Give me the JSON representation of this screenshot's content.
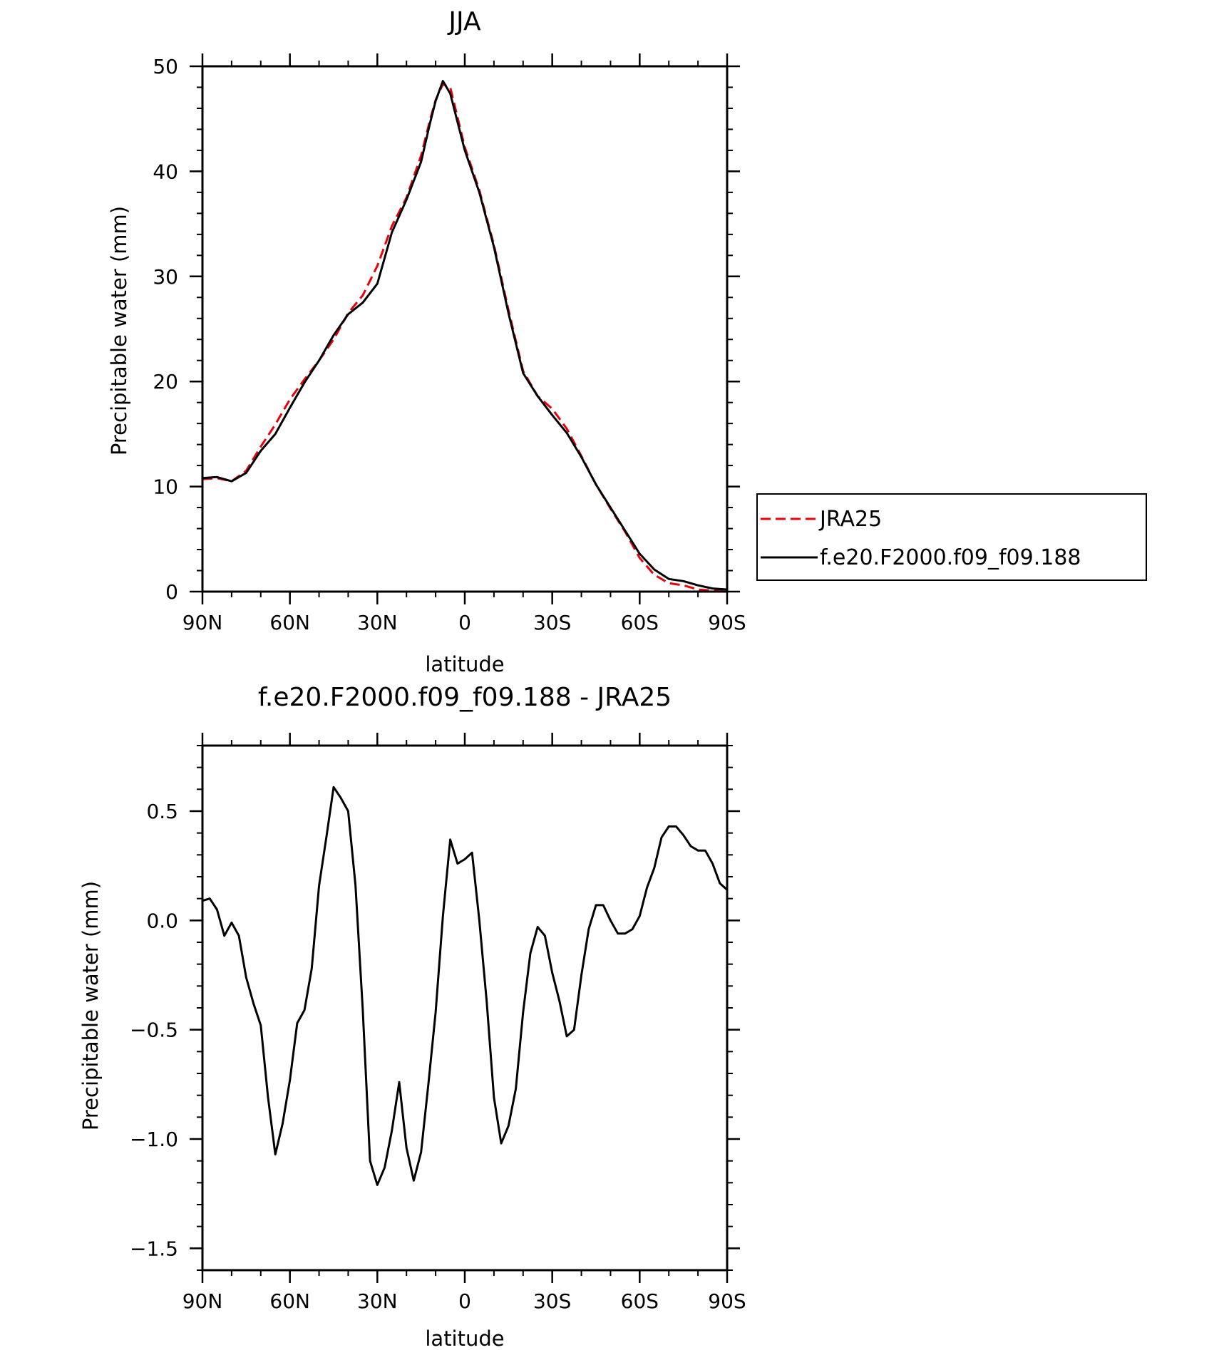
{
  "chart_data": [
    {
      "type": "line",
      "title": "JJA",
      "xlabel": "latitude",
      "ylabel": "Precipitable water (mm)",
      "xlim": [
        90,
        -90
      ],
      "ylim": [
        0,
        50
      ],
      "x_ticks": [
        90,
        60,
        30,
        0,
        -30,
        -60,
        -90
      ],
      "x_tick_labels": [
        "90N",
        "60N",
        "30N",
        "0",
        "30S",
        "60S",
        "90S"
      ],
      "y_ticks": [
        0,
        10,
        20,
        30,
        40,
        50
      ],
      "y_tick_labels": [
        "0",
        "10",
        "20",
        "30",
        "40",
        "50"
      ],
      "legend_position": "right",
      "series": [
        {
          "name": "JRA25",
          "color": "#e8000b",
          "dash": "dashed",
          "x": [
            90,
            85,
            80,
            75,
            70,
            65,
            60,
            55,
            50,
            45,
            40,
            35,
            30,
            25,
            20,
            15,
            12,
            10,
            7.5,
            5,
            0,
            -5,
            -10,
            -15,
            -20,
            -25,
            -30,
            -35,
            -40,
            -45,
            -50,
            -55,
            -60,
            -65,
            -70,
            -75,
            -80,
            -85,
            -90
          ],
          "y": [
            10.7,
            10.8,
            10.5,
            11.5,
            13.8,
            15.9,
            18.3,
            20.2,
            22.0,
            24.0,
            26.5,
            28.2,
            31.0,
            34.8,
            37.5,
            41.5,
            44.8,
            46.8,
            48.3,
            48.0,
            42.3,
            38.2,
            33.0,
            26.8,
            21.0,
            18.6,
            17.4,
            15.5,
            12.9,
            10.2,
            7.9,
            5.7,
            3.2,
            1.6,
            0.8,
            0.6,
            0.2,
            0.1,
            0.1
          ]
        },
        {
          "name": "f.e20.F2000.f09_f09.188",
          "color": "#000000",
          "dash": "solid",
          "x": [
            90,
            85,
            80,
            75,
            70,
            65,
            60,
            55,
            50,
            45,
            40,
            35,
            30,
            25,
            20,
            15,
            12,
            10,
            7.5,
            5,
            0,
            -5,
            -10,
            -15,
            -20,
            -25,
            -30,
            -35,
            -40,
            -45,
            -50,
            -55,
            -60,
            -65,
            -70,
            -75,
            -80,
            -85,
            -90
          ],
          "y": [
            10.8,
            10.9,
            10.5,
            11.3,
            13.4,
            15.0,
            17.5,
            19.9,
            22.0,
            24.4,
            26.4,
            27.5,
            29.3,
            34.2,
            37.3,
            40.9,
            44.5,
            46.7,
            48.6,
            47.4,
            42.0,
            38.0,
            32.8,
            26.5,
            20.8,
            18.6,
            16.8,
            15.1,
            12.8,
            10.2,
            8.0,
            5.8,
            3.6,
            2.1,
            1.2,
            1.0,
            0.6,
            0.3,
            0.2
          ]
        }
      ]
    },
    {
      "type": "line",
      "title": "f.e20.F2000.f09_f09.188 - JRA25",
      "xlabel": "latitude",
      "ylabel": "Precipitable water (mm)",
      "xlim": [
        90,
        -90
      ],
      "ylim": [
        -1.6,
        0.8
      ],
      "x_ticks": [
        90,
        60,
        30,
        0,
        -30,
        -60,
        -90
      ],
      "x_tick_labels": [
        "90N",
        "60N",
        "30N",
        "0",
        "30S",
        "60S",
        "90S"
      ],
      "y_ticks": [
        -1.5,
        -1.0,
        -0.5,
        0.0,
        0.5
      ],
      "y_tick_labels": [
        "−1.5",
        "−1.0",
        "−0.5",
        "0.0",
        "0.5"
      ],
      "series": [
        {
          "color": "#000000",
          "dash": "solid",
          "x": [
            90,
            87.5,
            85,
            82.5,
            80,
            77.5,
            75,
            72.5,
            70,
            67.5,
            65,
            62.5,
            60,
            57.5,
            55,
            52.5,
            50,
            47.5,
            45,
            42.5,
            40,
            37.5,
            35,
            32.5,
            30,
            27.5,
            25,
            22.5,
            20,
            17.5,
            15,
            12.5,
            10,
            7.5,
            5,
            2.5,
            0,
            -2.5,
            -5,
            -7.5,
            -10,
            -12.5,
            -15,
            -17.5,
            -20,
            -22.5,
            -25,
            -27.5,
            -30,
            -32.5,
            -35,
            -37.5,
            -40,
            -42.5,
            -45,
            -47.5,
            -50,
            -52.5,
            -55,
            -57.5,
            -60,
            -62.5,
            -65,
            -67.5,
            -70,
            -72.5,
            -75,
            -77.5,
            -80,
            -82.5,
            -85,
            -87.5,
            -90
          ],
          "y": [
            0.09,
            0.1,
            0.05,
            -0.07,
            -0.01,
            -0.07,
            -0.26,
            -0.38,
            -0.48,
            -0.81,
            -1.07,
            -0.93,
            -0.73,
            -0.47,
            -0.41,
            -0.22,
            0.16,
            0.38,
            0.61,
            0.56,
            0.5,
            0.16,
            -0.41,
            -1.1,
            -1.21,
            -1.13,
            -0.96,
            -0.74,
            -1.04,
            -1.19,
            -1.06,
            -0.75,
            -0.42,
            0.02,
            0.37,
            0.26,
            0.28,
            0.31,
            0.0,
            -0.37,
            -0.81,
            -1.02,
            -0.94,
            -0.77,
            -0.42,
            -0.15,
            -0.03,
            -0.07,
            -0.24,
            -0.37,
            -0.53,
            -0.5,
            -0.25,
            -0.04,
            0.07,
            0.07,
            0.0,
            -0.06,
            -0.06,
            -0.04,
            0.02,
            0.15,
            0.24,
            0.38,
            0.43,
            0.43,
            0.39,
            0.34,
            0.32,
            0.32,
            0.26,
            0.17,
            0.14
          ]
        }
      ]
    }
  ]
}
